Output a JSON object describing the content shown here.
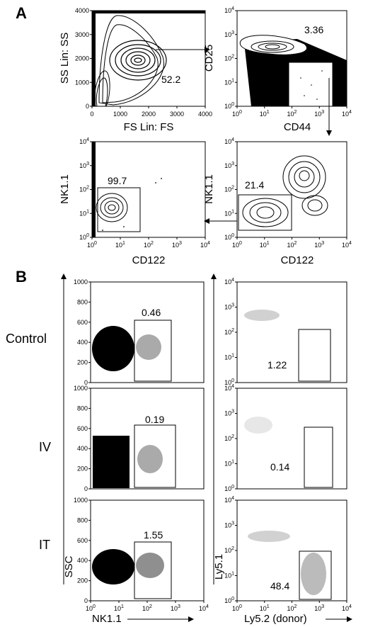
{
  "panels": {
    "a": "A",
    "b": "B"
  },
  "plots": {
    "a1": {
      "xlabel": "FS Lin: FS",
      "ylabel": "SS Lin: SS",
      "gate": "52.2",
      "xticks": [
        "0",
        "1000",
        "2000",
        "3000",
        "4000"
      ],
      "yticks": [
        "0",
        "1000",
        "2000",
        "3000",
        "4000"
      ]
    },
    "a2": {
      "xlabel": "CD44",
      "ylabel": "CD25",
      "gate": "3.36"
    },
    "a3": {
      "xlabel": "CD122",
      "ylabel": "NK1.1",
      "gate": "99.7"
    },
    "a4": {
      "xlabel": "CD122",
      "ylabel": "NK1.1",
      "gate": "21.4"
    },
    "b_left": {
      "ylabel": "SSC",
      "xlabel": "NK1.1",
      "yticks": [
        "0",
        "200",
        "400",
        "600",
        "800",
        "1000"
      ],
      "rows": [
        {
          "label": "Control",
          "gate": "0.46"
        },
        {
          "label": "IV",
          "gate": "0.19"
        },
        {
          "label": "IT",
          "gate": "1.55"
        }
      ]
    },
    "b_right": {
      "ylabel": "Ly5.1",
      "xlabel": "Ly5.2 (donor)",
      "gates": [
        "1.22",
        "0.14",
        "48.4"
      ]
    }
  },
  "log_ticks": {
    "base": "10",
    "exps": [
      "0",
      "1",
      "2",
      "3",
      "4"
    ]
  }
}
